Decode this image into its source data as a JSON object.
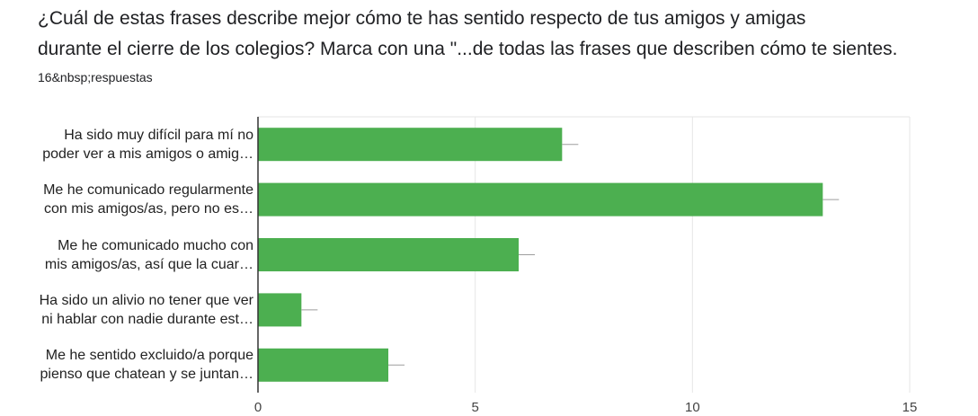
{
  "question": {
    "line1": "¿Cuál de estas frases describe mejor cómo te has sentido respecto de tus amigos y amigas",
    "line2": "durante el cierre de los colegios? Marca con una \"...de todas las frases que describen cómo te sientes."
  },
  "responses_label": "16&nbsp;respuestas",
  "colors": {
    "bar": "#4caf50",
    "grid": "#e6e6e6",
    "axis": "#333333",
    "error": "#9e9e9e"
  },
  "chart_data": {
    "type": "bar",
    "orientation": "horizontal",
    "title": "",
    "xlabel": "",
    "ylabel": "",
    "xlim": [
      0,
      15
    ],
    "xticks": [
      0,
      5,
      10,
      15
    ],
    "grid": true,
    "categories": [
      [
        "Ha sido muy difícil para mí no",
        "poder ver a mis amigos o amig…"
      ],
      [
        "Me he comunicado regularmente",
        "con mis amigos/as, pero no es…"
      ],
      [
        "Me he comunicado mucho con",
        "mis amigos/as, así que la cuar…"
      ],
      [
        "Ha sido un alivio no tener que ver",
        "ni hablar con nadie durante est…"
      ],
      [
        "Me he sentido excluido/a porque",
        "pienso que chatean y se juntan…"
      ]
    ],
    "values": [
      7,
      13,
      6,
      1,
      3
    ]
  }
}
